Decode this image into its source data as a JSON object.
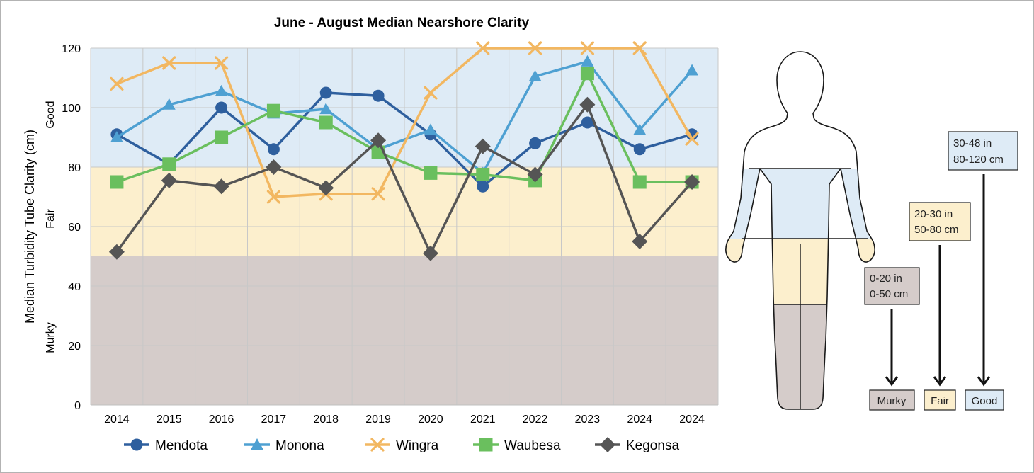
{
  "chart_data": {
    "type": "line",
    "title": "June - August Median Nearshore Clarity",
    "ylabel": "Median Turbidity Tube Clarity (cm)",
    "xlabel": "",
    "categories": [
      "2014",
      "2015",
      "2016",
      "2017",
      "2018",
      "2019",
      "2020",
      "2021",
      "2022",
      "2023",
      "2024",
      "2024"
    ],
    "ylim": [
      0,
      120
    ],
    "yticks": [
      0,
      20,
      40,
      60,
      80,
      100,
      120
    ],
    "grid": true,
    "legend_position": "bottom",
    "bands": [
      {
        "label": "Murky",
        "from": 0,
        "to": 50,
        "color": "#d5ccca"
      },
      {
        "label": "Fair",
        "from": 50,
        "to": 80,
        "color": "#fcefcd"
      },
      {
        "label": "Good",
        "from": 80,
        "to": 120,
        "color": "#deebf6"
      }
    ],
    "series": [
      {
        "name": "Mendota",
        "color": "#2e5f9e",
        "marker": "circle",
        "values": [
          91,
          81,
          100,
          86,
          105,
          104,
          91,
          73.5,
          88,
          95,
          86,
          91
        ]
      },
      {
        "name": "Monona",
        "color": "#4ea0d2",
        "marker": "triangle",
        "values": [
          90,
          101,
          105.5,
          98,
          99.5,
          86,
          92.5,
          78,
          110.5,
          115.5,
          92.5,
          112.5
        ]
      },
      {
        "name": "Wingra",
        "color": "#f2b761",
        "marker": "x",
        "values": [
          108,
          115,
          115,
          70,
          71,
          71,
          105,
          120,
          120,
          120,
          120,
          89.5
        ]
      },
      {
        "name": "Waubesa",
        "color": "#6abf5e",
        "marker": "square",
        "values": [
          75,
          81,
          90,
          99,
          95,
          85,
          78,
          77.5,
          75.5,
          111.5,
          75,
          75
        ]
      },
      {
        "name": "Kegonsa",
        "color": "#555555",
        "marker": "diamond",
        "values": [
          51.5,
          75.5,
          73.5,
          80,
          73,
          89,
          51,
          87,
          77.5,
          101,
          55,
          75
        ]
      }
    ]
  },
  "body_legend": {
    "colors": {
      "good": "#deebf6",
      "fair": "#fcefcd",
      "murky": "#d5ccca"
    },
    "boxes": [
      {
        "line1": "0-20 in",
        "line2": "0-50 cm",
        "tag": "Murky",
        "color": "#d5ccca"
      },
      {
        "line1": "20-30 in",
        "line2": "50-80 cm",
        "tag": "Fair",
        "color": "#fcefcd"
      },
      {
        "line1": "30-48 in",
        "line2": "80-120 cm",
        "tag": "Good",
        "color": "#deebf6"
      }
    ]
  }
}
